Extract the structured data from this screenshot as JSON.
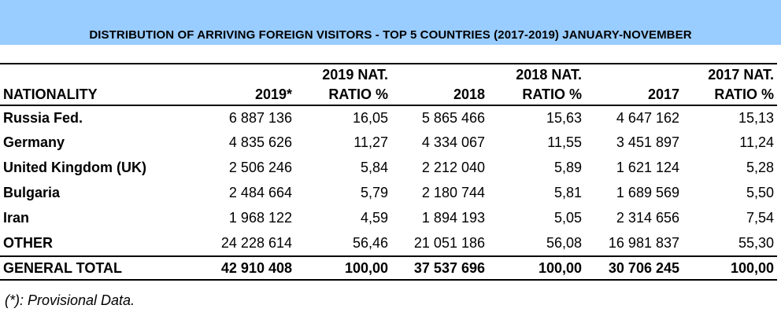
{
  "banner": {
    "title": "DISTRIBUTION OF ARRIVING FOREIGN VISITORS - TOP 5 COUNTRIES (2017-2019) JANUARY-NOVEMBER"
  },
  "table": {
    "header": {
      "nationality": "NATIONALITY",
      "y2019": "2019*",
      "ratio2019_line1": "2019 NAT.",
      "ratio2019_line2": "RATIO %",
      "y2018": "2018",
      "ratio2018_line1": "2018 NAT.",
      "ratio2018_line2": "RATIO %",
      "y2017": "2017",
      "ratio2017_line1": "2017 NAT.",
      "ratio2017_line2": "RATIO %"
    },
    "rows": [
      {
        "nationality": "Russia Fed.",
        "v2019": "6 887 136",
        "r2019": "16,05",
        "v2018": "5 865 466",
        "r2018": "15,63",
        "v2017": "4 647 162",
        "r2017": "15,13"
      },
      {
        "nationality": "Germany",
        "v2019": "4 835 626",
        "r2019": "11,27",
        "v2018": "4 334 067",
        "r2018": "11,55",
        "v2017": "3 451 897",
        "r2017": "11,24"
      },
      {
        "nationality": "United Kingdom (UK)",
        "v2019": "2 506 246",
        "r2019": "5,84",
        "v2018": "2 212 040",
        "r2018": "5,89",
        "v2017": "1 621 124",
        "r2017": "5,28"
      },
      {
        "nationality": "Bulgaria",
        "v2019": "2 484 664",
        "r2019": "5,79",
        "v2018": "2 180 744",
        "r2018": "5,81",
        "v2017": "1 689 569",
        "r2017": "5,50"
      },
      {
        "nationality": "Iran",
        "v2019": "1 968 122",
        "r2019": "4,59",
        "v2018": "1 894 193",
        "r2018": "5,05",
        "v2017": "2 314 656",
        "r2017": "7,54"
      },
      {
        "nationality": "OTHER",
        "v2019": "24 228 614",
        "r2019": "56,46",
        "v2018": "21 051 186",
        "r2018": "56,08",
        "v2017": "16 981 837",
        "r2017": "55,30"
      }
    ],
    "total": {
      "nationality": "GENERAL TOTAL",
      "v2019": "42 910 408",
      "r2019": "100,00",
      "v2018": "37 537 696",
      "r2018": "100,00",
      "v2017": "30 706 245",
      "r2017": "100,00"
    }
  },
  "footnote": "(*): Provisional Data.",
  "colors": {
    "banner": "#99ccff"
  }
}
